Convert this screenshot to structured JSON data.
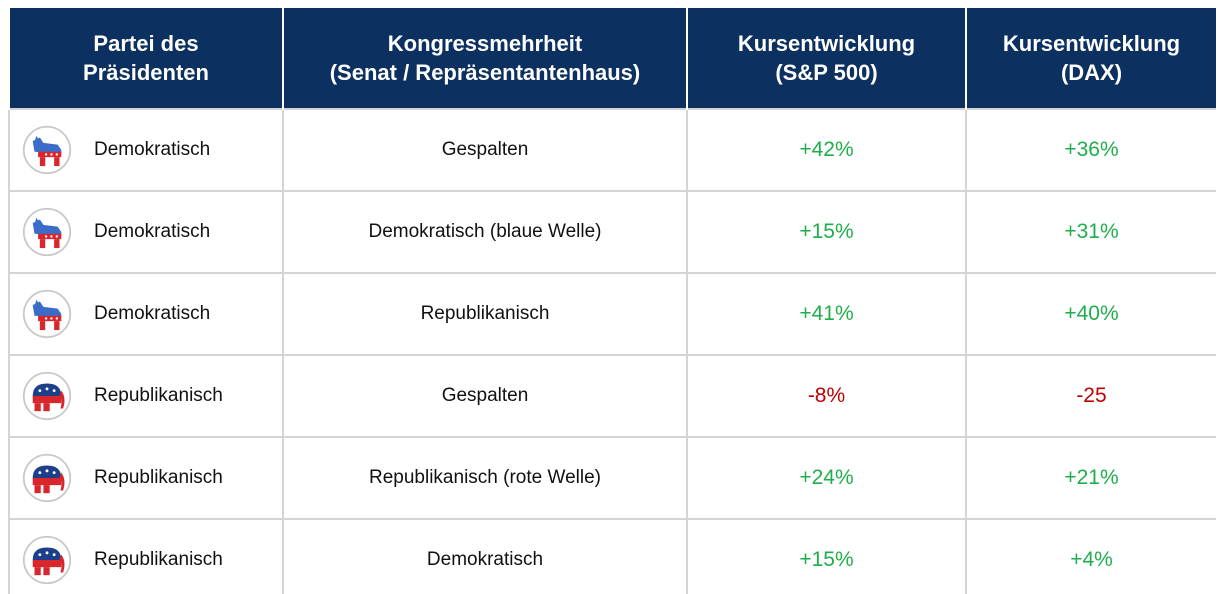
{
  "table": {
    "header": [
      [
        "Partei des",
        "Präsidenten"
      ],
      [
        "Kongressmehrheit",
        "(Senat / Repräsentantenhaus)"
      ],
      [
        "Kursentwicklung",
        "(S&P 500)"
      ],
      [
        "Kursentwicklung",
        "(DAX)"
      ]
    ],
    "rows": [
      [
        "Demokratisch",
        "Gespalten",
        "+42%",
        "+36%"
      ],
      [
        "Demokratisch",
        "Demokratisch (blaue Welle)",
        "+15%",
        "+31%"
      ],
      [
        "Demokratisch",
        "Republikanisch",
        "+41%",
        "+40%"
      ],
      [
        "Republikanisch",
        "Gespalten",
        "-8%",
        "-25"
      ],
      [
        "Republikanisch",
        "Republikanisch (rote Welle)",
        "+24%",
        "+21%"
      ],
      [
        "Republikanisch",
        "Demokratisch",
        "+15%",
        "+4%"
      ]
    ]
  }
}
